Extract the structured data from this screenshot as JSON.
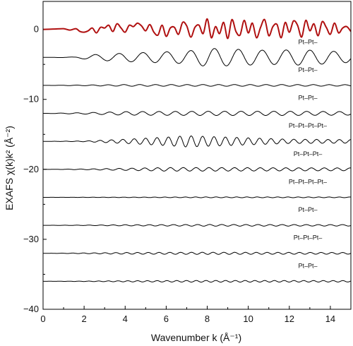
{
  "chart_data": {
    "type": "line",
    "xlabel": "Wavenumber k (Å⁻¹)",
    "ylabel": "EXAFS χ(k)k² (Å⁻²)",
    "xlim": [
      0,
      15
    ],
    "ylim": [
      -40,
      4
    ],
    "x_ticks": [
      0,
      2,
      4,
      6,
      8,
      10,
      12,
      14
    ],
    "y_ticks": [
      0,
      -10,
      -20,
      -30,
      -40
    ],
    "grid": false,
    "legend": "none",
    "series": [
      {
        "label": "",
        "offset": 0,
        "color": "#b01010",
        "k": [
          0,
          0.5,
          1.0,
          1.3,
          1.6,
          1.8,
          2.0,
          2.2,
          2.4,
          2.6,
          2.8,
          3.0,
          3.2,
          3.4,
          3.6,
          3.8,
          4.0,
          4.2,
          4.4,
          4.6,
          4.8,
          5.0,
          5.2,
          5.4,
          5.6,
          5.8,
          6.0,
          6.2,
          6.4,
          6.6,
          6.8,
          7.0,
          7.2,
          7.4,
          7.6,
          7.8,
          8.0,
          8.2,
          8.4,
          8.6,
          8.8,
          9.0,
          9.2,
          9.4,
          9.6,
          9.8,
          10.0,
          10.2,
          10.4,
          10.6,
          10.8,
          11.0,
          11.2,
          11.4,
          11.6,
          11.8,
          12.0,
          12.2,
          12.4,
          12.6,
          12.8,
          13.0,
          13.2,
          13.4,
          13.6,
          13.8,
          14.0,
          14.2,
          14.4,
          14.6,
          14.8,
          15.0
        ],
        "y": [
          0,
          0.05,
          0.1,
          -0.1,
          0.1,
          -0.3,
          -0.4,
          -0.2,
          0.2,
          -0.5,
          0.3,
          0.2,
          0.6,
          -0.3,
          0.8,
          0.2,
          -0.4,
          0.6,
          0.4,
          0.9,
          0.5,
          -0.2,
          0.7,
          -0.4,
          -0.8,
          0.6,
          -1.0,
          0.2,
          0.3,
          -0.7,
          1.0,
          0.5,
          -1.1,
          0.3,
          0.6,
          -0.6,
          1.5,
          -1.2,
          0.4,
          -0.6,
          1.0,
          -1.3,
          1.4,
          -0.3,
          -0.8,
          1.3,
          -0.5,
          0.9,
          -1.2,
          0.3,
          1.4,
          -0.9,
          0.4,
          0.7,
          -1.2,
          1.0,
          -0.4,
          1.2,
          0.6,
          -1.1,
          1.3,
          -0.2,
          0.8,
          -0.9,
          1.1,
          0.3,
          -0.7,
          0.9,
          -0.5,
          0.2,
          0.4,
          -0.3
        ]
      },
      {
        "label": "Pt–Pt–",
        "offset": -4,
        "color": "#000000",
        "wave": {
          "freq_cycles_per_unit": 0.86,
          "envelope": [
            [
              0,
              0
            ],
            [
              1.5,
              0.05
            ],
            [
              2.5,
              0.4
            ],
            [
              4,
              0.6
            ],
            [
              5.5,
              0.75
            ],
            [
              7,
              0.9
            ],
            [
              8,
              1.3
            ],
            [
              9,
              1.2
            ],
            [
              10,
              1.1
            ],
            [
              11,
              1.0
            ],
            [
              12.5,
              1.1
            ],
            [
              14,
              0.9
            ],
            [
              15,
              0.7
            ]
          ]
        }
      },
      {
        "label": "Pt–Pt–",
        "offset": -8,
        "color": "#000000",
        "wave": {
          "freq_cycles_per_unit": 1.3,
          "envelope": [
            [
              0,
              0
            ],
            [
              2,
              0.05
            ],
            [
              4,
              0.12
            ],
            [
              8,
              0.12
            ],
            [
              12,
              0.12
            ],
            [
              15,
              0.1
            ]
          ]
        }
      },
      {
        "label": "Pt–Pt–",
        "offset": -12,
        "color": "#000000",
        "wave": {
          "freq_cycles_per_unit": 1.25,
          "envelope": [
            [
              0,
              0
            ],
            [
              2,
              0.1
            ],
            [
              4,
              0.25
            ],
            [
              8,
              0.3
            ],
            [
              12,
              0.3
            ],
            [
              15,
              0.25
            ]
          ]
        }
      },
      {
        "label": "Pt–Pt–Pt–Pt–",
        "offset": -16,
        "color": "#000000",
        "wave": {
          "freq_cycles_per_unit": 1.8,
          "envelope": [
            [
              0,
              0
            ],
            [
              2,
              0.05
            ],
            [
              4,
              0.3
            ],
            [
              6,
              0.6
            ],
            [
              7,
              0.8
            ],
            [
              8,
              0.7
            ],
            [
              10,
              0.5
            ],
            [
              12,
              0.3
            ],
            [
              15,
              0.25
            ]
          ]
        }
      },
      {
        "label": "Pt–Pt–Pt–",
        "offset": -20,
        "color": "#000000",
        "wave": {
          "freq_cycles_per_unit": 1.6,
          "envelope": [
            [
              0,
              0
            ],
            [
              2,
              0.05
            ],
            [
              4,
              0.15
            ],
            [
              6,
              0.25
            ],
            [
              8,
              0.25
            ],
            [
              12,
              0.22
            ],
            [
              15,
              0.2
            ]
          ]
        }
      },
      {
        "label": "Pt–Pt–Pt–Pt–",
        "offset": -24,
        "color": "#000000",
        "wave": {
          "freq_cycles_per_unit": 2.0,
          "envelope": [
            [
              0,
              0
            ],
            [
              3,
              0.02
            ],
            [
              8,
              0.06
            ],
            [
              15,
              0.05
            ]
          ]
        }
      },
      {
        "label": "Pt–Pt–",
        "offset": -28,
        "color": "#000000",
        "wave": {
          "freq_cycles_per_unit": 1.7,
          "envelope": [
            [
              0,
              0
            ],
            [
              2,
              0.03
            ],
            [
              4,
              0.08
            ],
            [
              8,
              0.12
            ],
            [
              15,
              0.1
            ]
          ]
        }
      },
      {
        "label": "Pt–Pt–Pt–",
        "offset": -32,
        "color": "#000000",
        "wave": {
          "freq_cycles_per_unit": 1.9,
          "envelope": [
            [
              0,
              0
            ],
            [
              2,
              0.05
            ],
            [
              4,
              0.12
            ],
            [
              8,
              0.15
            ],
            [
              15,
              0.12
            ]
          ]
        }
      },
      {
        "label": "Pt–Pt–",
        "offset": -36,
        "color": "#000000",
        "wave": {
          "freq_cycles_per_unit": 2.1,
          "envelope": [
            [
              0,
              0
            ],
            [
              2,
              0.03
            ],
            [
              4,
              0.08
            ],
            [
              8,
              0.12
            ],
            [
              15,
              0.1
            ]
          ]
        }
      }
    ]
  }
}
